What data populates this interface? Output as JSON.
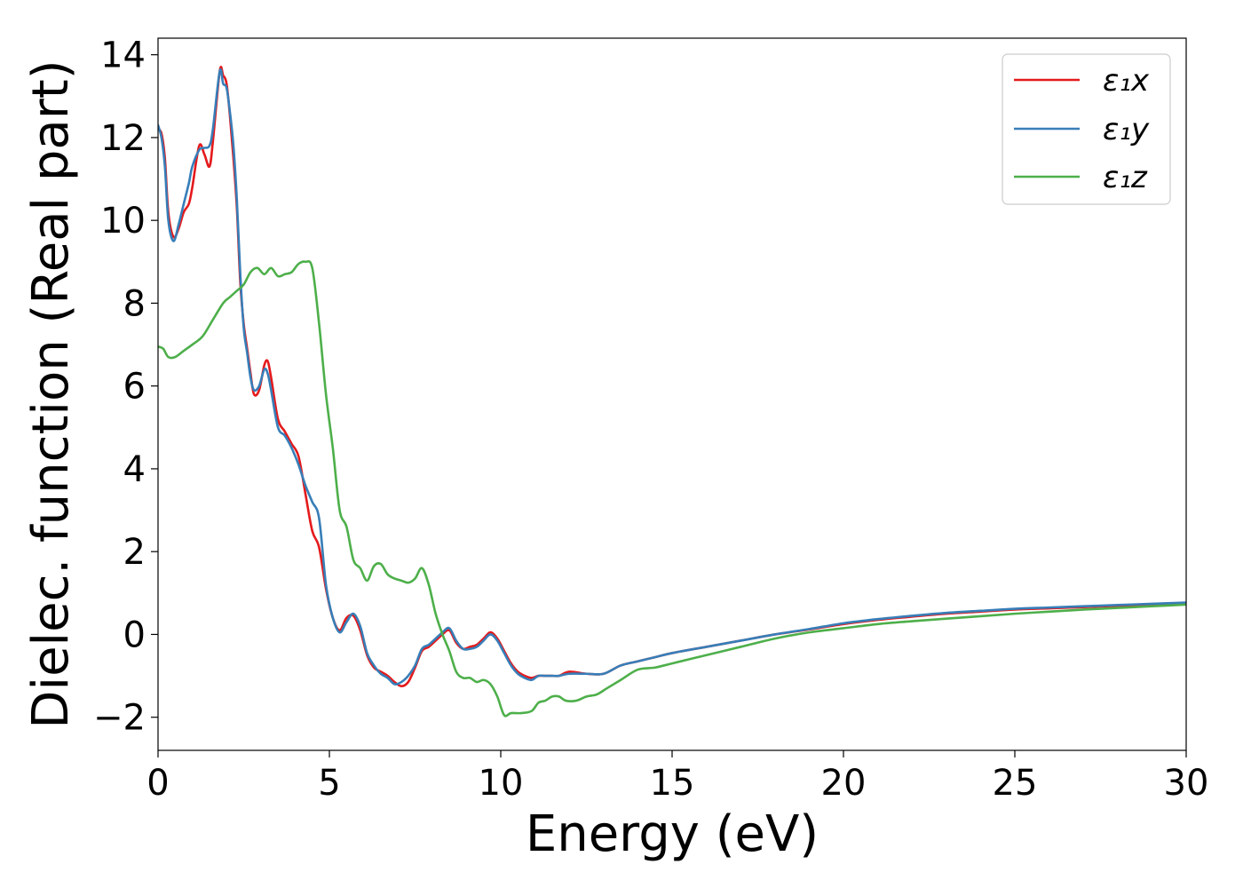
{
  "chart_data": {
    "type": "line",
    "title": "",
    "xlabel": "Energy (eV)",
    "ylabel": "Dielec. function (Real part)",
    "xlim": [
      0,
      30
    ],
    "ylim": [
      -2.8,
      14.4
    ],
    "xticks": [
      0,
      5,
      10,
      15,
      20,
      25,
      30
    ],
    "yticks": [
      -2,
      0,
      2,
      4,
      6,
      8,
      10,
      12,
      14
    ],
    "xtick_labels": [
      "0",
      "5",
      "10",
      "15",
      "20",
      "25",
      "30"
    ],
    "ytick_labels": [
      "−2",
      "0",
      "2",
      "4",
      "6",
      "8",
      "10",
      "12",
      "14"
    ],
    "grid": false,
    "legend_position": "top-right",
    "series": [
      {
        "name": "ε₁x",
        "color": "#e41a1c",
        "x": [
          0,
          0.1,
          0.2,
          0.3,
          0.45,
          0.6,
          0.75,
          0.9,
          1.0,
          1.2,
          1.35,
          1.5,
          1.6,
          1.8,
          1.9,
          2.0,
          2.1,
          2.2,
          2.3,
          2.4,
          2.5,
          2.6,
          2.7,
          2.8,
          2.95,
          3.1,
          3.2,
          3.3,
          3.5,
          3.7,
          3.9,
          4.1,
          4.3,
          4.5,
          4.7,
          4.9,
          5.1,
          5.3,
          5.5,
          5.7,
          5.9,
          6.1,
          6.3,
          6.5,
          6.7,
          6.9,
          7.1,
          7.3,
          7.5,
          7.7,
          7.9,
          8.1,
          8.3,
          8.5,
          8.7,
          8.9,
          9.1,
          9.3,
          9.5,
          9.7,
          9.9,
          10.1,
          10.3,
          10.5,
          10.7,
          10.9,
          11.1,
          11.3,
          11.5,
          11.7,
          12.0,
          12.5,
          13.0,
          13.5,
          14.0,
          14.5,
          15.0,
          16.0,
          17.0,
          18.0,
          19.0,
          20.0,
          21.0,
          22.0,
          23.0,
          24.0,
          25.0,
          26.0,
          27.0,
          28.0,
          29.0,
          30.0
        ],
        "y": [
          12.2,
          12.1,
          11.5,
          10.2,
          9.6,
          9.8,
          10.2,
          10.4,
          10.8,
          11.8,
          11.6,
          11.3,
          11.9,
          13.6,
          13.5,
          13.3,
          12.5,
          11.5,
          10.3,
          8.5,
          7.5,
          6.9,
          6.3,
          5.8,
          5.9,
          6.5,
          6.6,
          6.2,
          5.2,
          4.9,
          4.6,
          4.3,
          3.4,
          2.5,
          2.1,
          1.1,
          0.4,
          0.1,
          0.4,
          0.45,
          0.1,
          -0.5,
          -0.8,
          -0.9,
          -1.0,
          -1.15,
          -1.25,
          -1.15,
          -0.8,
          -0.4,
          -0.3,
          -0.15,
          0.0,
          0.1,
          -0.2,
          -0.35,
          -0.3,
          -0.25,
          -0.1,
          0.05,
          -0.1,
          -0.4,
          -0.7,
          -0.9,
          -1.0,
          -1.05,
          -1.0,
          -1.0,
          -1.0,
          -1.0,
          -0.9,
          -0.95,
          -0.95,
          -0.75,
          -0.65,
          -0.55,
          -0.45,
          -0.3,
          -0.15,
          0.0,
          0.12,
          0.25,
          0.35,
          0.43,
          0.5,
          0.55,
          0.6,
          0.63,
          0.66,
          0.69,
          0.72,
          0.75
        ]
      },
      {
        "name": "ε₁y",
        "color": "#377eb8",
        "x": [
          0,
          0.1,
          0.2,
          0.3,
          0.45,
          0.6,
          0.75,
          0.9,
          1.0,
          1.2,
          1.35,
          1.5,
          1.6,
          1.8,
          1.9,
          2.0,
          2.1,
          2.2,
          2.3,
          2.4,
          2.5,
          2.6,
          2.7,
          2.8,
          2.95,
          3.1,
          3.2,
          3.3,
          3.5,
          3.7,
          3.9,
          4.1,
          4.3,
          4.5,
          4.7,
          4.9,
          5.1,
          5.3,
          5.5,
          5.7,
          5.9,
          6.1,
          6.3,
          6.5,
          6.7,
          6.9,
          7.1,
          7.3,
          7.5,
          7.7,
          7.9,
          8.1,
          8.3,
          8.5,
          8.7,
          8.9,
          9.1,
          9.3,
          9.5,
          9.7,
          9.9,
          10.1,
          10.3,
          10.5,
          10.7,
          10.9,
          11.1,
          11.3,
          11.5,
          11.7,
          12.0,
          12.5,
          13.0,
          13.5,
          14.0,
          14.5,
          15.0,
          16.0,
          17.0,
          18.0,
          19.0,
          20.0,
          21.0,
          22.0,
          23.0,
          24.0,
          25.0,
          26.0,
          27.0,
          28.0,
          29.0,
          30.0
        ],
        "y": [
          12.3,
          12.0,
          11.3,
          10.0,
          9.5,
          9.9,
          10.4,
          10.9,
          11.3,
          11.7,
          11.75,
          11.8,
          12.2,
          13.6,
          13.3,
          13.2,
          12.6,
          11.8,
          10.5,
          8.7,
          7.4,
          6.8,
          6.2,
          5.9,
          6.0,
          6.4,
          6.3,
          5.9,
          5.0,
          4.8,
          4.5,
          4.1,
          3.6,
          3.2,
          2.8,
          1.2,
          0.4,
          0.05,
          0.3,
          0.5,
          0.2,
          -0.45,
          -0.75,
          -0.95,
          -1.05,
          -1.2,
          -1.15,
          -1.0,
          -0.75,
          -0.35,
          -0.25,
          -0.1,
          0.05,
          0.15,
          -0.15,
          -0.35,
          -0.35,
          -0.3,
          -0.15,
          0.0,
          -0.15,
          -0.45,
          -0.75,
          -0.95,
          -1.05,
          -1.1,
          -1.0,
          -1.0,
          -1.0,
          -1.0,
          -0.95,
          -0.95,
          -0.95,
          -0.75,
          -0.65,
          -0.55,
          -0.45,
          -0.3,
          -0.15,
          0.0,
          0.13,
          0.27,
          0.37,
          0.45,
          0.52,
          0.57,
          0.62,
          0.65,
          0.68,
          0.71,
          0.74,
          0.77
        ]
      },
      {
        "name": "ε₁z",
        "color": "#4daf4a",
        "x": [
          0,
          0.15,
          0.3,
          0.5,
          0.75,
          1.0,
          1.3,
          1.6,
          1.9,
          2.1,
          2.3,
          2.5,
          2.7,
          2.9,
          3.1,
          3.3,
          3.5,
          3.7,
          3.9,
          4.1,
          4.3,
          4.5,
          4.7,
          4.9,
          5.1,
          5.3,
          5.5,
          5.7,
          5.9,
          6.1,
          6.3,
          6.5,
          6.7,
          6.9,
          7.1,
          7.3,
          7.5,
          7.7,
          7.9,
          8.1,
          8.3,
          8.5,
          8.7,
          8.9,
          9.1,
          9.3,
          9.5,
          9.7,
          9.9,
          10.1,
          10.3,
          10.6,
          10.9,
          11.1,
          11.3,
          11.5,
          11.7,
          11.9,
          12.2,
          12.5,
          12.8,
          13.1,
          13.5,
          14.0,
          14.5,
          15.0,
          16.0,
          17.0,
          18.0,
          19.0,
          20.0,
          21.0,
          22.0,
          23.0,
          24.0,
          25.0,
          26.0,
          27.0,
          28.0,
          29.0,
          30.0
        ],
        "y": [
          6.95,
          6.9,
          6.7,
          6.7,
          6.85,
          7.0,
          7.2,
          7.6,
          8.0,
          8.15,
          8.3,
          8.45,
          8.75,
          8.85,
          8.7,
          8.85,
          8.65,
          8.7,
          8.75,
          8.95,
          9.0,
          8.85,
          7.5,
          5.8,
          4.5,
          3.0,
          2.6,
          1.8,
          1.6,
          1.3,
          1.65,
          1.7,
          1.45,
          1.35,
          1.3,
          1.25,
          1.35,
          1.6,
          1.2,
          0.5,
          0.0,
          -0.4,
          -0.9,
          -1.05,
          -1.05,
          -1.15,
          -1.1,
          -1.2,
          -1.5,
          -1.95,
          -1.9,
          -1.9,
          -1.85,
          -1.65,
          -1.6,
          -1.5,
          -1.5,
          -1.6,
          -1.6,
          -1.5,
          -1.45,
          -1.3,
          -1.1,
          -0.85,
          -0.8,
          -0.7,
          -0.5,
          -0.3,
          -0.1,
          0.05,
          0.15,
          0.25,
          0.32,
          0.38,
          0.44,
          0.5,
          0.55,
          0.6,
          0.64,
          0.68,
          0.72
        ]
      }
    ]
  }
}
